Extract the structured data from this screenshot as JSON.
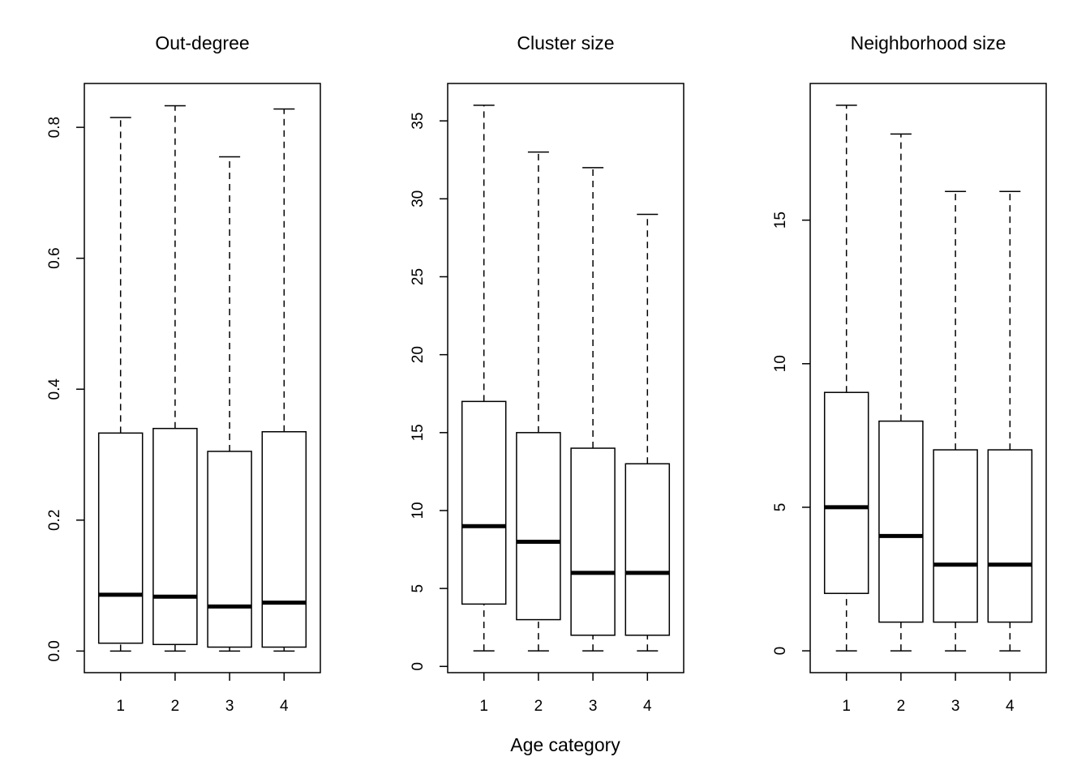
{
  "chart_data": {
    "type": "boxplot",
    "xlabel": "Age category",
    "panels": [
      {
        "title": "Out-degree",
        "categories": [
          "1",
          "2",
          "3",
          "4"
        ],
        "ylim": [
          -0.033,
          0.867
        ],
        "yticks": [
          0.0,
          0.2,
          0.4,
          0.6,
          0.8
        ],
        "ytick_labels": [
          "0.0",
          "0.2",
          "0.4",
          "0.6",
          "0.8"
        ],
        "boxes": [
          {
            "min": 0.0,
            "q1": 0.012,
            "median": 0.086,
            "q3": 0.333,
            "max": 0.815
          },
          {
            "min": 0.0,
            "q1": 0.01,
            "median": 0.083,
            "q3": 0.34,
            "max": 0.833
          },
          {
            "min": 0.0,
            "q1": 0.006,
            "median": 0.068,
            "q3": 0.305,
            "max": 0.755
          },
          {
            "min": 0.0,
            "q1": 0.006,
            "median": 0.074,
            "q3": 0.335,
            "max": 0.828
          }
        ]
      },
      {
        "title": "Cluster size",
        "categories": [
          "1",
          "2",
          "3",
          "4"
        ],
        "ylim": [
          -0.4,
          37.4
        ],
        "yticks": [
          0,
          5,
          10,
          15,
          20,
          25,
          30,
          35
        ],
        "ytick_labels": [
          "0",
          "5",
          "10",
          "15",
          "20",
          "25",
          "30",
          "35"
        ],
        "boxes": [
          {
            "min": 1,
            "q1": 4,
            "median": 9,
            "q3": 17,
            "max": 36
          },
          {
            "min": 1,
            "q1": 3,
            "median": 8,
            "q3": 15,
            "max": 33
          },
          {
            "min": 1,
            "q1": 2,
            "median": 6,
            "q3": 14,
            "max": 32
          },
          {
            "min": 1,
            "q1": 2,
            "median": 6,
            "q3": 13,
            "max": 29
          }
        ]
      },
      {
        "title": "Neighborhood size",
        "categories": [
          "1",
          "2",
          "3",
          "4"
        ],
        "ylim": [
          -0.76,
          19.76
        ],
        "yticks": [
          0,
          5,
          10,
          15
        ],
        "ytick_labels": [
          "0",
          "5",
          "10",
          "15"
        ],
        "boxes": [
          {
            "min": 0,
            "q1": 2,
            "median": 5,
            "q3": 9,
            "max": 19
          },
          {
            "min": 0,
            "q1": 1,
            "median": 4,
            "q3": 8,
            "max": 18
          },
          {
            "min": 0,
            "q1": 1,
            "median": 3,
            "q3": 7,
            "max": 16
          },
          {
            "min": 0,
            "q1": 1,
            "median": 3,
            "q3": 7,
            "max": 16
          }
        ]
      }
    ]
  }
}
